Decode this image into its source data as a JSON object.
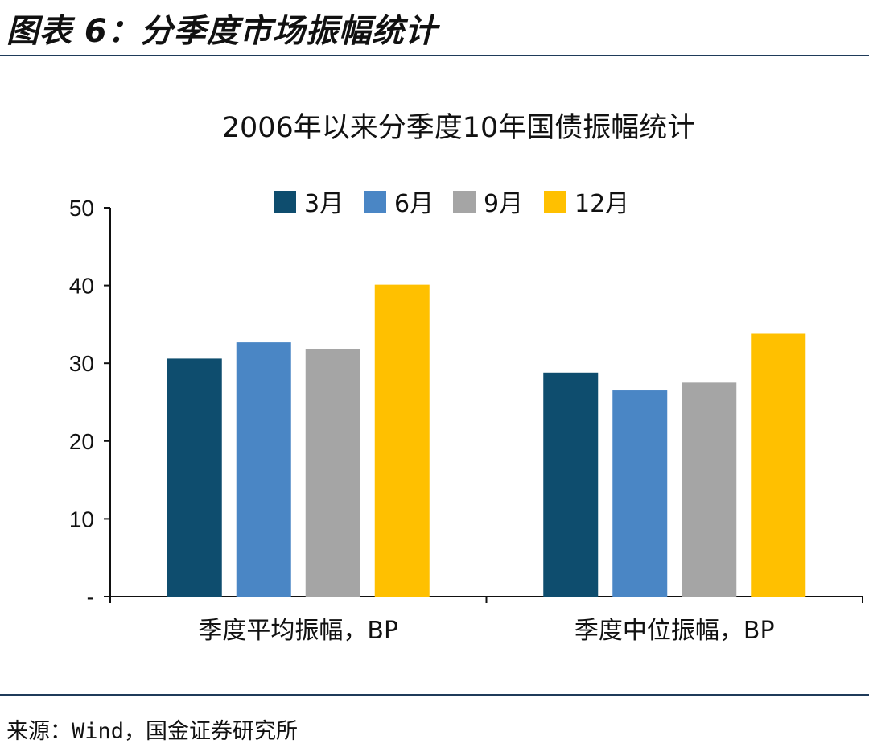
{
  "header": {
    "figure_title": "图表 6：分季度市场振幅统计"
  },
  "footer": {
    "source": "来源：Wind，国金证券研究所"
  },
  "chart_data": {
    "type": "bar",
    "title": "2006年以来分季度10年国债振幅统计",
    "xlabel": "",
    "ylabel": "",
    "ylim": [
      0,
      50
    ],
    "yticks": [
      {
        "value": 0,
        "label": "-"
      },
      {
        "value": 10,
        "label": "10"
      },
      {
        "value": 20,
        "label": "20"
      },
      {
        "value": 30,
        "label": "30"
      },
      {
        "value": 40,
        "label": "40"
      },
      {
        "value": 50,
        "label": "50"
      }
    ],
    "categories": [
      "季度平均振幅，BP",
      "季度中位振幅，BP"
    ],
    "legend_position": "top",
    "grid": false,
    "series": [
      {
        "name": "3月",
        "color": "#0e4d6e",
        "values": [
          30.6,
          28.8
        ]
      },
      {
        "name": "6月",
        "color": "#4a86c5",
        "values": [
          32.7,
          26.6
        ]
      },
      {
        "name": "9月",
        "color": "#a5a5a5",
        "values": [
          31.8,
          27.5
        ]
      },
      {
        "name": "12月",
        "color": "#ffc000",
        "values": [
          40.1,
          33.8
        ]
      }
    ]
  }
}
